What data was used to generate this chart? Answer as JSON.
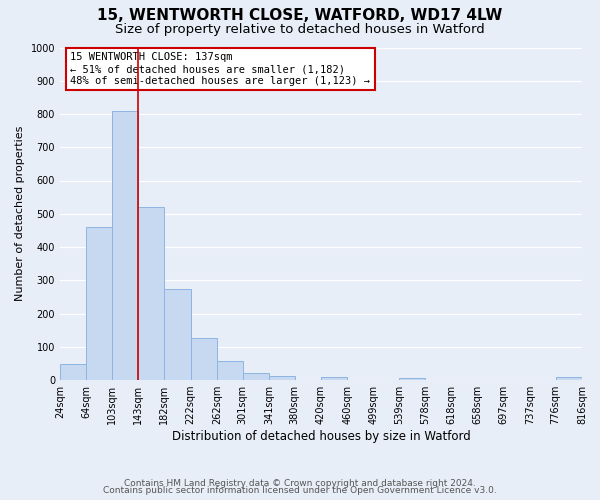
{
  "title": "15, WENTWORTH CLOSE, WATFORD, WD17 4LW",
  "subtitle": "Size of property relative to detached houses in Watford",
  "xlabel": "Distribution of detached houses by size in Watford",
  "ylabel": "Number of detached properties",
  "bar_color": "#c6d9f1",
  "bar_edgecolor": "#8db4e2",
  "background_color": "#e8eef8",
  "grid_color": "#ffffff",
  "bin_edges": [
    24,
    64,
    103,
    143,
    182,
    222,
    262,
    301,
    341,
    380,
    420,
    460,
    499,
    539,
    578,
    618,
    658,
    697,
    737,
    776,
    816
  ],
  "bar_heights": [
    47,
    460,
    810,
    520,
    275,
    125,
    57,
    22,
    12,
    0,
    10,
    0,
    0,
    5,
    0,
    0,
    0,
    0,
    0,
    10
  ],
  "tick_labels": [
    "24sqm",
    "64sqm",
    "103sqm",
    "143sqm",
    "182sqm",
    "222sqm",
    "262sqm",
    "301sqm",
    "341sqm",
    "380sqm",
    "420sqm",
    "460sqm",
    "499sqm",
    "539sqm",
    "578sqm",
    "618sqm",
    "658sqm",
    "697sqm",
    "737sqm",
    "776sqm",
    "816sqm"
  ],
  "vline_x": 143,
  "vline_color": "#cc0000",
  "annotation_box_text": "15 WENTWORTH CLOSE: 137sqm\n← 51% of detached houses are smaller (1,182)\n48% of semi-detached houses are larger (1,123) →",
  "annotation_box_edgecolor": "#cc0000",
  "ylim": [
    0,
    1000
  ],
  "yticks": [
    0,
    100,
    200,
    300,
    400,
    500,
    600,
    700,
    800,
    900,
    1000
  ],
  "footer_line1": "Contains HM Land Registry data © Crown copyright and database right 2024.",
  "footer_line2": "Contains public sector information licensed under the Open Government Licence v3.0.",
  "title_fontsize": 11,
  "subtitle_fontsize": 9.5,
  "axis_label_fontsize": 8.5,
  "tick_fontsize": 7,
  "annotation_fontsize": 7.5,
  "footer_fontsize": 6.5,
  "ylabel_fontsize": 8
}
